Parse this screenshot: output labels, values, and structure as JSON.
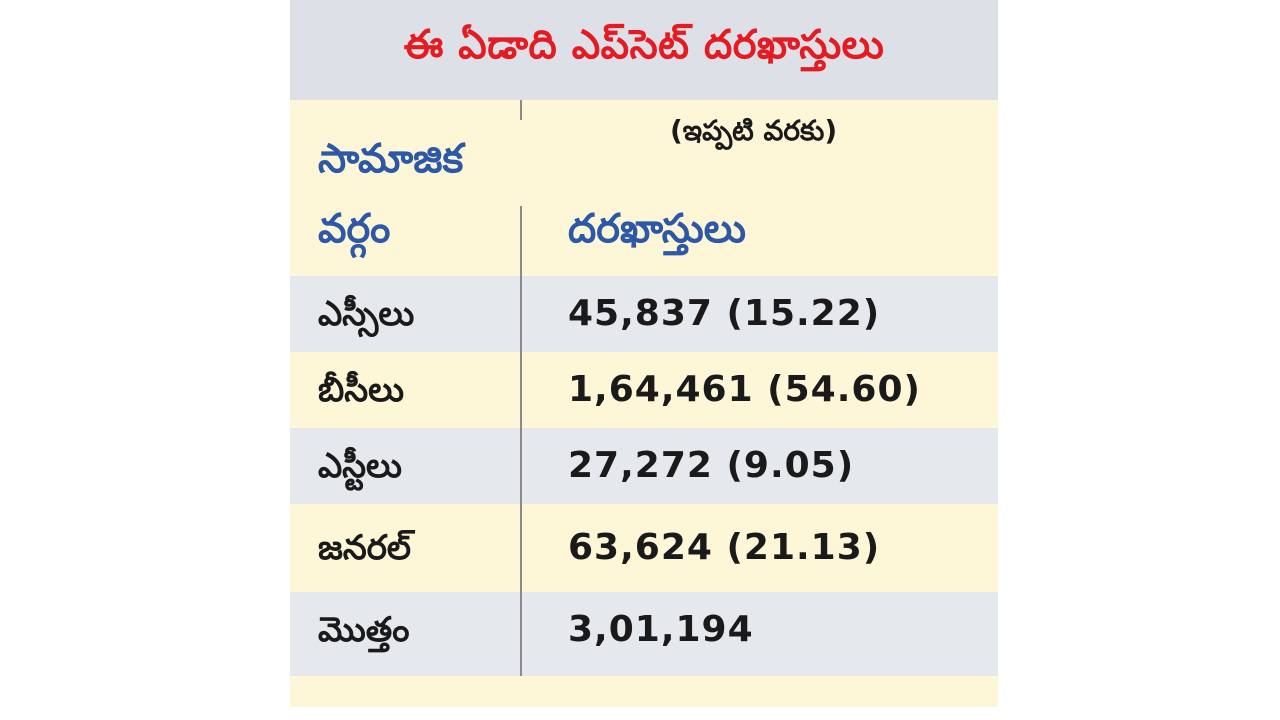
{
  "title": "ఈ ఏడాది ఎప్‌సెట్ దరఖాస్తులు",
  "subtitle": "(ఇప్పటి వరకు)",
  "column_label": {
    "line1": "సామాజిక",
    "line2": "వర్గం"
  },
  "column_value_header": "దరఖాస్తులు",
  "colors": {
    "title": "#e41b23",
    "header": "#2d58a8",
    "grey_band": "#e5e8ec",
    "yellow_band": "#fdf7d8"
  },
  "rows": [
    {
      "name": "ఎస్సీలు",
      "value": "45,837 (15.22)"
    },
    {
      "name": "బీసీలు",
      "value": "1,64,461 (54.60)"
    },
    {
      "name": "ఎస్టీలు",
      "value": "27,272 (9.05)"
    },
    {
      "name": "జనరల్",
      "value": "63,624 (21.13)"
    },
    {
      "name": "మొత్తం",
      "value": "3,01,194"
    }
  ]
}
